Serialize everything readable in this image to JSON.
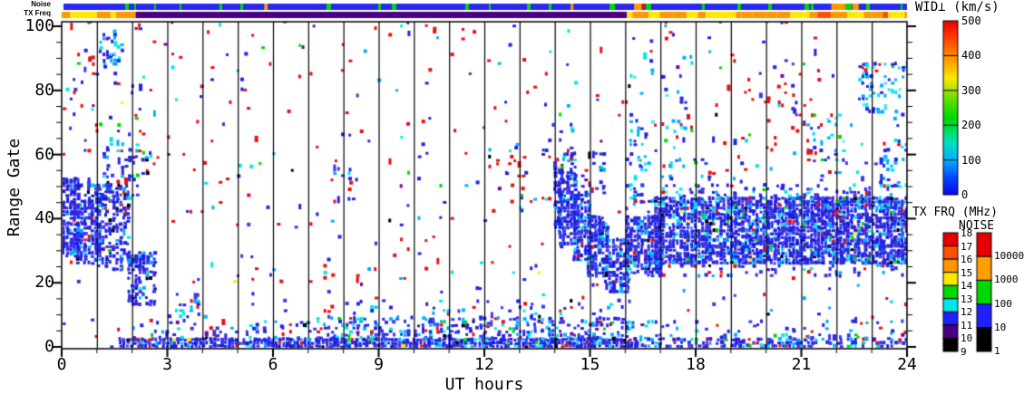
{
  "top_bars": {
    "noise_label": "Noise",
    "txfreq_label": "TX Freq",
    "noise": {
      "base_color": "#2828ee",
      "stripe_color": "#00d800",
      "stripe_density": 0.055,
      "patches": [
        {
          "t": 5.75,
          "dt": 0.1,
          "color": "#ff9800"
        },
        {
          "t": 14.45,
          "dt": 0.08,
          "color": "#ff9800"
        },
        {
          "t": 16.25,
          "dt": 0.22,
          "color": "#ff9800"
        },
        {
          "t": 16.47,
          "dt": 0.08,
          "color": "#e81010"
        },
        {
          "t": 21.85,
          "dt": 0.4,
          "color": "#ff9800"
        },
        {
          "t": 22.45,
          "dt": 0.18,
          "color": "#ff9800"
        }
      ]
    },
    "txfreq": {
      "segments": [
        {
          "t0": 0,
          "t1": 2.1,
          "mode": "mix",
          "colors": [
            "#ff9800",
            "#ffe800"
          ],
          "weights": [
            0.55,
            0.45
          ]
        },
        {
          "t0": 2.1,
          "t1": 16.05,
          "mode": "solid",
          "color": "#4a0082"
        },
        {
          "t0": 16.05,
          "t1": 24,
          "mode": "mix",
          "colors": [
            "#ff9800",
            "#ffe800",
            "#ff5000"
          ],
          "weights": [
            0.58,
            0.35,
            0.07
          ]
        }
      ]
    }
  },
  "axes": {
    "x": {
      "label": "UT hours",
      "min": 0,
      "max": 24,
      "major_ticks": [
        0,
        3,
        6,
        9,
        12,
        15,
        18,
        21,
        24
      ],
      "minor_step": 1,
      "gridline_step": 1
    },
    "y": {
      "label": "Range Gate",
      "min": 0,
      "max": 101,
      "major_ticks": [
        0,
        20,
        40,
        60,
        80,
        100
      ],
      "minor_step": 5
    }
  },
  "legends": {
    "wid": {
      "title": "WID⊥ (km/s)",
      "min": 0,
      "max": 500,
      "ticks": [
        0,
        100,
        200,
        300,
        400,
        500
      ],
      "divisions": [
        100,
        200,
        300,
        400
      ],
      "gradient_stops": [
        [
          "#0808e8",
          0.0
        ],
        [
          "#0048ff",
          0.1
        ],
        [
          "#00b0ff",
          0.2
        ],
        [
          "#00e0c0",
          0.3
        ],
        [
          "#00d800",
          0.44
        ],
        [
          "#60e000",
          0.55
        ],
        [
          "#ffe800",
          0.67
        ],
        [
          "#ff8800",
          0.8
        ],
        [
          "#ff3000",
          0.92
        ],
        [
          "#e80000",
          1.0
        ]
      ]
    },
    "txfrq": {
      "title": "TX FRQ (MHz)",
      "labels_top_down": [
        "18",
        "17",
        "16",
        "15",
        "14",
        "13",
        "12",
        "11",
        "10",
        "9"
      ],
      "segment_colors_top_down": [
        "#e80000",
        "#ff5000",
        "#ff9800",
        "#ffe800",
        "#00d800",
        "#00e8e8",
        "#2020ff",
        "#4a0082",
        "#000000"
      ]
    },
    "noise": {
      "title": "NOISE",
      "labels_top_down": [
        "10000",
        "1000",
        "100",
        "10",
        "1"
      ],
      "segment_colors_top_down": [
        "#e80000",
        "#ffa000",
        "#00d800",
        "#2020ff",
        "#000000"
      ]
    }
  },
  "chart_data": {
    "type": "scatter",
    "description": "SuperDARN-style radar summary plot: perpendicular spectral width (WID⊥, km/s) versus range gate (0-101) and time (0-24 UT hours). Point colors follow the WID⊥ color bar; backscatter is dominated by low widths (blue, 0-100 km/s). Dense ionospheric echo band at gates 25-55 during 0-2.5 UT, near-range ground/meteor band at gates 0-10 from ~2-16 UT, a band descending from gate ~55 at 14 UT to gate ~25 by 16 UT, then a broad persistent band at gates 26-46 from 16-24 UT. Sparse noise points (mostly red/blue) scattered over the whole field.",
    "xlabel": "UT hours",
    "ylabel": "Range Gate",
    "xlim": [
      0,
      24
    ],
    "ylim": [
      0,
      101
    ],
    "hour_gridlines": true,
    "seed": 1337,
    "regions_format": "[t_start_hr, t_end_hr, gate_min, gate_max, fill_probability, palette]",
    "palettes": {
      "sparseMix": [
        [
          "#e81010",
          0.4
        ],
        [
          "#2222e8",
          0.24
        ],
        [
          "#00b0ff",
          0.1
        ],
        [
          "#00e8e8",
          0.08
        ],
        [
          "#4433cc",
          0.05
        ],
        [
          "#3838f0",
          0.04
        ],
        [
          "#00d800",
          0.04
        ],
        [
          "#000000",
          0.02
        ],
        [
          "#7700aa",
          0.02
        ],
        [
          "#ffe800",
          0.01
        ]
      ],
      "blueDense": [
        [
          "#2424e6",
          0.42
        ],
        [
          "#1b1bd4",
          0.18
        ],
        [
          "#3a3af2",
          0.16
        ],
        [
          "#4433cc",
          0.08
        ],
        [
          "#00b0ff",
          0.07
        ],
        [
          "#00e8e8",
          0.04
        ],
        [
          "#e81010",
          0.02
        ],
        [
          "#000000",
          0.015
        ],
        [
          "#00d800",
          0.01
        ],
        [
          "#ffe800",
          0.005
        ]
      ],
      "blueMix": [
        [
          "#2424e6",
          0.4
        ],
        [
          "#3a3af2",
          0.14
        ],
        [
          "#00b0ff",
          0.16
        ],
        [
          "#00e8e8",
          0.12
        ],
        [
          "#4433cc",
          0.05
        ],
        [
          "#e81010",
          0.06
        ],
        [
          "#00d800",
          0.03
        ],
        [
          "#000000",
          0.02
        ],
        [
          "#7700aa",
          0.02
        ]
      ],
      "blueCyan": [
        [
          "#00b0ff",
          0.3
        ],
        [
          "#00e8e8",
          0.25
        ],
        [
          "#2424e6",
          0.3
        ],
        [
          "#55e8ff",
          0.1
        ],
        [
          "#e81010",
          0.03
        ],
        [
          "#00d800",
          0.02
        ]
      ],
      "redDom": [
        [
          "#e81010",
          0.7
        ],
        [
          "#2424e6",
          0.15
        ],
        [
          "#00e8e8",
          0.08
        ],
        [
          "#00b0ff",
          0.07
        ]
      ]
    },
    "regions": [
      [
        0,
        24,
        0,
        101,
        0.02,
        "sparseMix"
      ],
      [
        0,
        2.2,
        55,
        101,
        0.03,
        "sparseMix"
      ],
      [
        17,
        21.5,
        55,
        90,
        0.02,
        "sparseMix"
      ],
      [
        0,
        0.45,
        28,
        52,
        0.8,
        "blueDense"
      ],
      [
        0.4,
        1.05,
        26,
        50,
        0.62,
        "blueDense"
      ],
      [
        1.0,
        1.85,
        24,
        50,
        0.5,
        "blueDense"
      ],
      [
        1.15,
        2.15,
        44,
        63,
        0.28,
        "blueMix"
      ],
      [
        1.85,
        2.65,
        13,
        29,
        0.55,
        "blueDense"
      ],
      [
        1.05,
        1.6,
        84,
        96,
        0.3,
        "blueCyan"
      ],
      [
        2.05,
        2.55,
        53,
        60,
        0.3,
        "blueMix"
      ],
      [
        3.1,
        3.9,
        7,
        17,
        0.22,
        "blueMix"
      ],
      [
        1.6,
        16.3,
        0,
        2.5,
        0.85,
        "blueDense"
      ],
      [
        2,
        7,
        2.5,
        8,
        0.18,
        "blueMix"
      ],
      [
        7,
        16.2,
        2.5,
        9,
        0.38,
        "blueMix"
      ],
      [
        7,
        16.2,
        9,
        14,
        0.1,
        "blueMix"
      ],
      [
        16.3,
        24,
        0,
        2.5,
        0.5,
        "blueMix"
      ],
      [
        16.3,
        24,
        2.5,
        8,
        0.12,
        "blueMix"
      ],
      [
        13.95,
        14.2,
        36,
        58,
        0.55,
        "blueDense"
      ],
      [
        14.1,
        14.6,
        32,
        54,
        0.7,
        "blueDense"
      ],
      [
        14.5,
        15.0,
        27,
        47,
        0.75,
        "blueDense"
      ],
      [
        14.9,
        15.5,
        22,
        40,
        0.75,
        "blueDense"
      ],
      [
        15.4,
        16.1,
        17,
        33,
        0.7,
        "blueDense"
      ],
      [
        14.1,
        15.4,
        46,
        60,
        0.2,
        "blueMix"
      ],
      [
        13.6,
        14.5,
        58,
        70,
        0.15,
        "blueMix"
      ],
      [
        16.0,
        17.0,
        22,
        40,
        0.78,
        "blueDense"
      ],
      [
        16.8,
        24,
        26,
        46,
        0.8,
        "blueDense"
      ],
      [
        16.8,
        24,
        22,
        28,
        0.22,
        "blueMix"
      ],
      [
        16.8,
        24,
        44,
        50,
        0.18,
        "blueMix"
      ],
      [
        16.0,
        17.7,
        45,
        85,
        0.05,
        "blueCyan"
      ],
      [
        16.0,
        16.7,
        38,
        58,
        0.18,
        "blueMix"
      ],
      [
        17.5,
        24,
        46,
        58,
        0.07,
        "blueMix"
      ],
      [
        19.9,
        21.4,
        58,
        76,
        0.08,
        "redDom"
      ],
      [
        21.3,
        22.15,
        58,
        72,
        0.18,
        "blueCyan"
      ],
      [
        22.6,
        24,
        73,
        88,
        0.28,
        "blueCyan"
      ],
      [
        7.7,
        8.35,
        44,
        56,
        0.13,
        "blueMix"
      ],
      [
        12.1,
        13.15,
        42,
        62,
        0.09,
        "sparseMix"
      ],
      [
        5.0,
        5.4,
        50,
        58,
        0.08,
        "blueMix"
      ],
      [
        23.2,
        24,
        50,
        64,
        0.15,
        "blueCyan"
      ]
    ]
  }
}
